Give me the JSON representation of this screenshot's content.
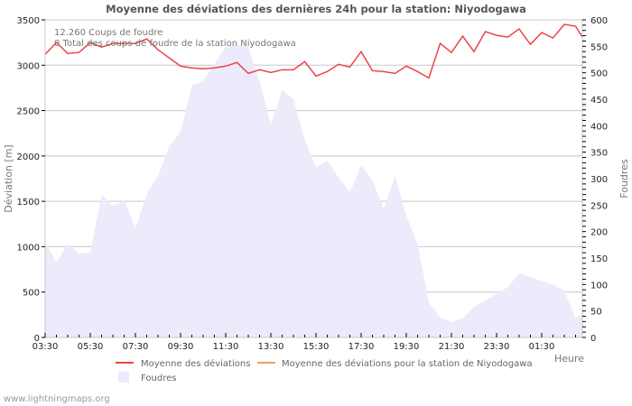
{
  "title": "Moyenne des déviations des dernières 24h pour la station: Niyodogawa",
  "info": {
    "line1": "12.260  Coups de foudre",
    "line2": "0 Total des coups de foudre de la station Niyodogawa"
  },
  "footer": "www.lightningmaps.org",
  "colors": {
    "deviation_line": "#ee4444",
    "station_line": "#f0a060",
    "foudres_fill": "#ebebfc",
    "grid": "#c8c8c8"
  },
  "chart_data": {
    "type": "line",
    "title": "Moyenne des déviations des dernières 24h pour la station: Niyodogawa",
    "xlabel": "Heure",
    "ylabel": "Déviation  [m]",
    "y2label": "Foudres",
    "ylim": [
      0,
      3500
    ],
    "y2lim": [
      0,
      600
    ],
    "yticks": [
      0,
      500,
      1000,
      1500,
      2000,
      2500,
      3000,
      3500
    ],
    "y2ticks": [
      0,
      50,
      100,
      150,
      200,
      250,
      300,
      350,
      400,
      450,
      500,
      550,
      600
    ],
    "xtick_labels": [
      "03:30",
      "05:30",
      "07:30",
      "09:30",
      "11:30",
      "13:30",
      "15:30",
      "17:30",
      "19:30",
      "21:30",
      "23:30",
      "01:30"
    ],
    "grid": true,
    "legend_position": "bottom",
    "legend": [
      "Moyenne des déviations",
      "Moyenne des déviations pour la station de Niyodogawa",
      "Foudres"
    ],
    "x": [
      "03:30",
      "04:00",
      "04:30",
      "05:00",
      "05:30",
      "06:00",
      "06:30",
      "07:00",
      "07:30",
      "08:00",
      "08:30",
      "09:00",
      "09:30",
      "10:00",
      "10:30",
      "11:00",
      "11:30",
      "12:00",
      "12:30",
      "13:00",
      "13:30",
      "14:00",
      "14:30",
      "15:00",
      "15:30",
      "16:00",
      "16:30",
      "17:00",
      "17:30",
      "18:00",
      "18:30",
      "19:00",
      "19:30",
      "20:00",
      "20:30",
      "21:00",
      "21:30",
      "22:00",
      "22:30",
      "23:00",
      "23:30",
      "00:00",
      "00:30",
      "01:00",
      "01:30",
      "02:00",
      "02:30",
      "03:00",
      "03:15"
    ],
    "series": [
      {
        "name": "Moyenne des déviations",
        "axis": "left",
        "type": "line",
        "values": [
          3120,
          3250,
          3130,
          3140,
          3250,
          3200,
          3240,
          3240,
          3240,
          3290,
          3170,
          3080,
          2990,
          2970,
          2960,
          2970,
          2990,
          3030,
          2910,
          2950,
          2920,
          2950,
          2950,
          3040,
          2880,
          2930,
          3010,
          2980,
          3150,
          2940,
          2930,
          2910,
          2990,
          2930,
          2860,
          3240,
          3140,
          3320,
          3150,
          3370,
          3330,
          3310,
          3400,
          3230,
          3360,
          3300,
          3450,
          3430,
          3310
        ]
      },
      {
        "name": "Moyenne des déviations pour la station de Niyodogawa",
        "axis": "left",
        "type": "line",
        "values": []
      },
      {
        "name": "Foudres",
        "axis": "right",
        "type": "area",
        "values": [
          180,
          141,
          177,
          159,
          160,
          269,
          249,
          259,
          206,
          271,
          305,
          361,
          389,
          476,
          484,
          516,
          549,
          552,
          549,
          484,
          402,
          467,
          450,
          373,
          322,
          334,
          302,
          274,
          325,
          297,
          242,
          305,
          230,
          177,
          66,
          38,
          29,
          36,
          58,
          70,
          82,
          95,
          121,
          114,
          107,
          99,
          89,
          36,
          44
        ]
      }
    ]
  }
}
